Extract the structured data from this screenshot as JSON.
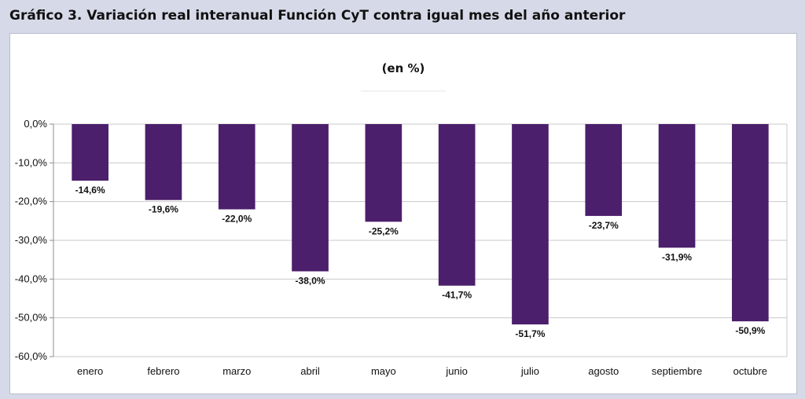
{
  "page": {
    "title": "Gráfico 3. Variación real interanual Función CyT contra igual mes del año anterior"
  },
  "chart_data": {
    "type": "bar",
    "title": "",
    "subtitle": "(en %)",
    "xlabel": "",
    "ylabel": "",
    "categories": [
      "enero",
      "febrero",
      "marzo",
      "abril",
      "mayo",
      "junio",
      "julio",
      "agosto",
      "septiembre",
      "octubre"
    ],
    "values": [
      -14.6,
      -19.6,
      -22.0,
      -38.0,
      -25.2,
      -41.7,
      -51.7,
      -23.7,
      -31.9,
      -50.9
    ],
    "data_labels": [
      "-14,6%",
      "-19,6%",
      "-22,0%",
      "-38,0%",
      "-25,2%",
      "-41,7%",
      "-51,7%",
      "-23,7%",
      "-31,9%",
      "-50,9%"
    ],
    "ylim": [
      -60,
      0
    ],
    "yticks": [
      0,
      -10,
      -20,
      -30,
      -40,
      -50,
      -60
    ],
    "ytick_labels": [
      "0,0%",
      "-10,0%",
      "-20,0%",
      "-30,0%",
      "-40,0%",
      "-50,0%",
      "-60,0%"
    ],
    "grid": true,
    "legend": "none",
    "colors": {
      "bar": "#4b1f6b",
      "grid": "#c8c8c8",
      "axis": "#8c8c8c"
    }
  }
}
